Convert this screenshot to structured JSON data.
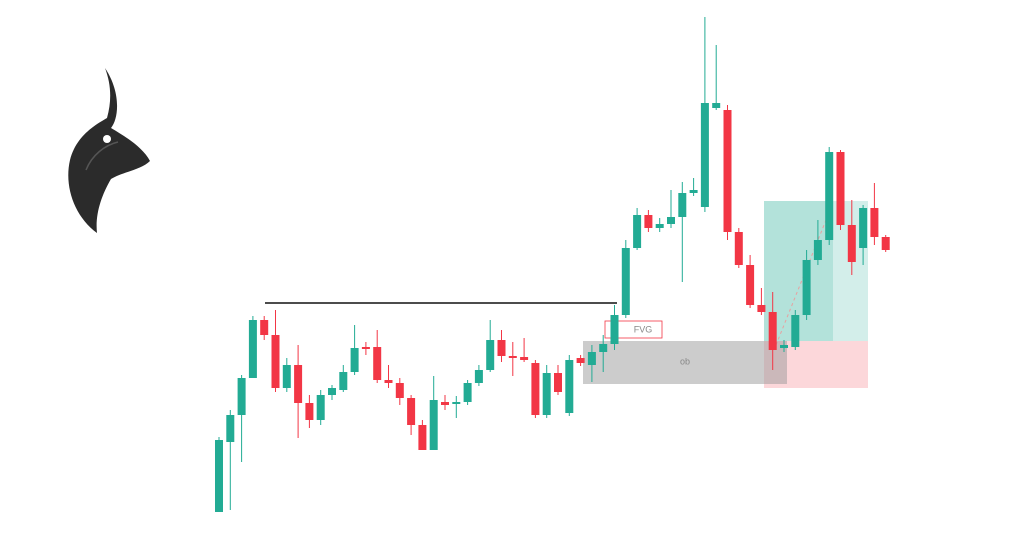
{
  "chart_data": {
    "type": "candlestick",
    "categories": [
      null,
      null,
      null,
      null,
      null,
      null,
      null,
      null,
      null,
      null,
      null,
      null,
      null,
      null,
      null,
      null,
      null,
      null,
      null,
      null,
      null,
      null,
      null,
      null,
      null,
      null,
      null,
      null,
      null,
      null,
      null,
      null,
      null,
      null,
      null,
      null,
      null,
      null,
      null,
      null,
      null,
      null,
      null,
      null,
      null,
      null,
      null,
      null,
      null,
      null,
      null,
      null,
      null,
      null,
      null,
      null,
      null,
      null,
      null,
      null
    ],
    "open": [
      26,
      96,
      123,
      160,
      218,
      203,
      150,
      173,
      135,
      118,
      143,
      148,
      166,
      191,
      191,
      158,
      155,
      140,
      113,
      88,
      136,
      134,
      136,
      155,
      168,
      198,
      182,
      181,
      175,
      123,
      165,
      125,
      180,
      173,
      186,
      194,
      223,
      290,
      323,
      310,
      314,
      321,
      345,
      331,
      430,
      428,
      306,
      273,
      233,
      226,
      190,
      191,
      223,
      278,
      298,
      386,
      313,
      290,
      330,
      301
    ],
    "high": [
      101,
      128,
      163,
      222,
      222,
      228,
      180,
      193,
      143,
      148,
      153,
      173,
      213,
      196,
      208,
      173,
      160,
      143,
      118,
      162,
      143,
      142,
      158,
      173,
      218,
      208,
      196,
      200,
      178,
      173,
      173,
      183,
      183,
      193,
      203,
      233,
      298,
      330,
      328,
      320,
      348,
      356,
      360,
      521,
      493,
      433,
      310,
      283,
      250,
      246,
      198,
      228,
      288,
      318,
      391,
      388,
      338,
      333,
      355,
      303
    ],
    "low": [
      26,
      28,
      76,
      160,
      198,
      146,
      146,
      100,
      110,
      113,
      138,
      146,
      163,
      183,
      155,
      150,
      133,
      103,
      88,
      88,
      128,
      120,
      133,
      152,
      166,
      176,
      162,
      176,
      120,
      120,
      143,
      122,
      172,
      156,
      166,
      188,
      220,
      288,
      306,
      306,
      310,
      256,
      342,
      326,
      428,
      298,
      270,
      230,
      223,
      168,
      186,
      188,
      218,
      273,
      293,
      308,
      263,
      273,
      293,
      286
    ],
    "close": [
      98,
      123,
      160,
      218,
      203,
      150,
      173,
      135,
      118,
      143,
      150,
      166,
      190,
      189,
      158,
      155,
      140,
      113,
      88,
      138,
      133,
      136,
      155,
      168,
      198,
      182,
      180,
      178,
      123,
      165,
      146,
      178,
      175,
      186,
      194,
      223,
      290,
      323,
      310,
      314,
      321,
      345,
      348,
      435,
      435,
      306,
      273,
      233,
      226,
      188,
      193,
      223,
      278,
      298,
      386,
      313,
      276,
      330,
      301,
      288
    ],
    "up_color": "#22ab94",
    "down_color": "#f23645",
    "ylim": [
      0,
      538
    ],
    "annotations": [
      {
        "text": "FVG"
      },
      {
        "text": "ob"
      }
    ]
  }
}
